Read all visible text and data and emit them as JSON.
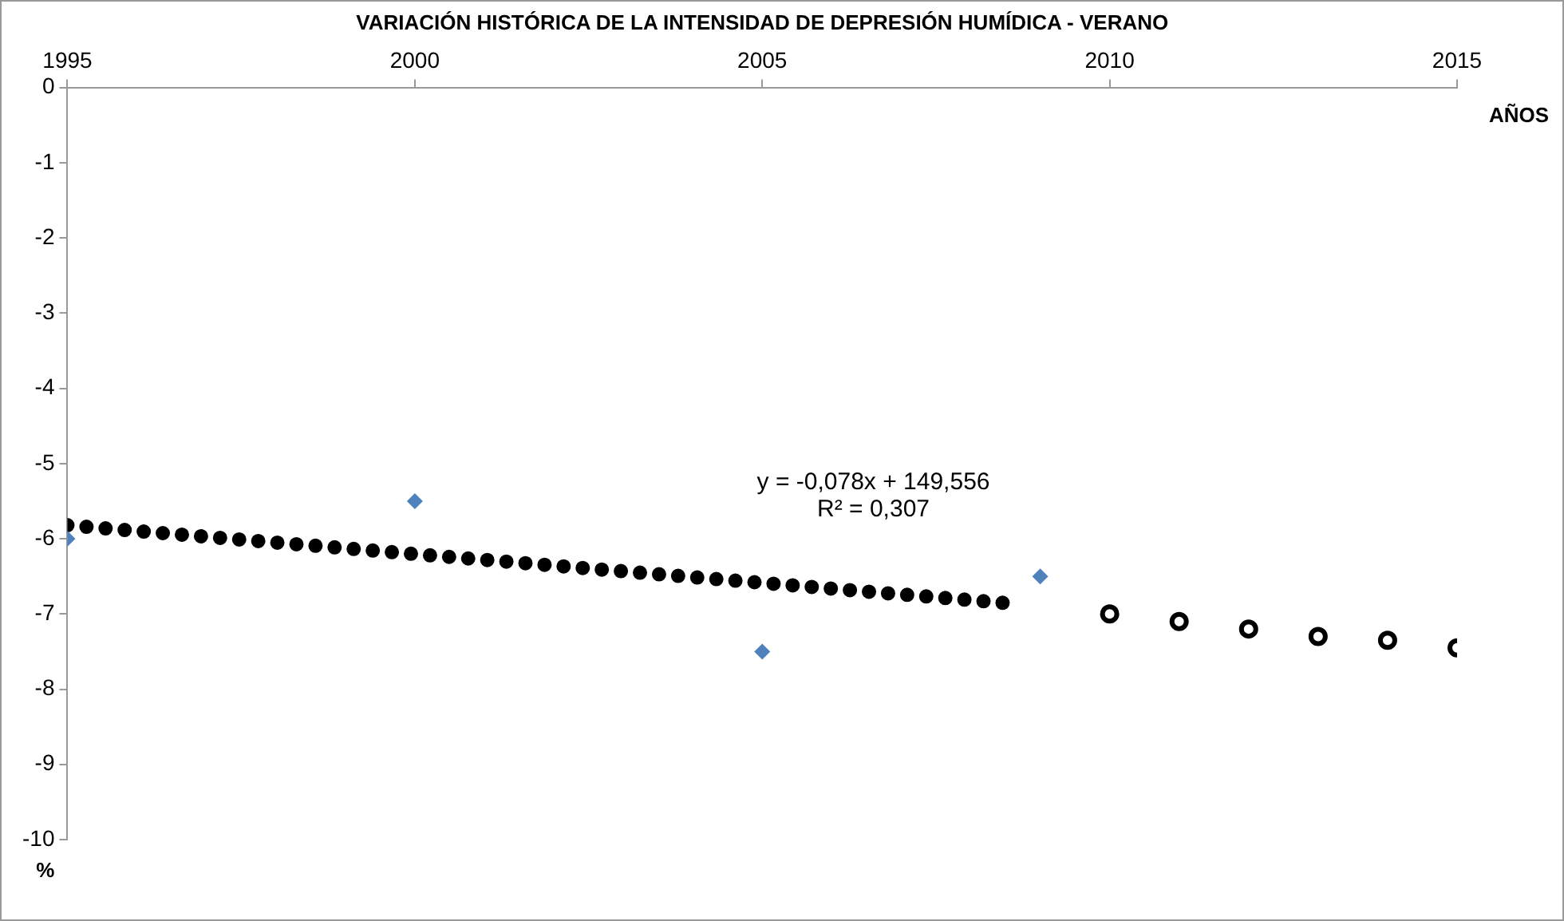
{
  "chart_data": {
    "type": "scatter",
    "title": "VARIACIÓN HISTÓRICA DE LA INTENSIDAD DE DEPRESIÓN HUMÍDICA - VERANO",
    "xlabel": "AÑOS",
    "ylabel": "%",
    "xlim": [
      1995,
      2015
    ],
    "xticks": [
      1995,
      2000,
      2005,
      2010,
      2015
    ],
    "ylim": [
      -10,
      0
    ],
    "yticks": [
      -10,
      -9,
      -8,
      -7,
      -6,
      -5,
      -4,
      -3,
      -2,
      -1,
      0
    ],
    "grid": false,
    "legend": false,
    "annotations": [
      "y = -0,078x + 149,556",
      "R² = 0,307"
    ],
    "series": [
      {
        "type": "scatter",
        "color": "#4f81bd",
        "marker": "diamond",
        "x": [
          1995,
          2000,
          2005,
          2009
        ],
        "values": [
          -6,
          -5.5,
          -7.5,
          -6.5
        ]
      },
      {
        "type": "line",
        "color": "#000000",
        "marker": "none",
        "line_style": "dotted",
        "x": [
          1995,
          2008.7
        ],
        "values": [
          -5.82,
          -6.87
        ]
      },
      {
        "type": "scatter",
        "color": "#000000",
        "marker": "circle",
        "x": [
          2010,
          2011,
          2012,
          2013,
          2014,
          2015
        ],
        "values": [
          -7.0,
          -7.1,
          -7.2,
          -7.3,
          -7.35,
          -7.45
        ]
      }
    ]
  }
}
